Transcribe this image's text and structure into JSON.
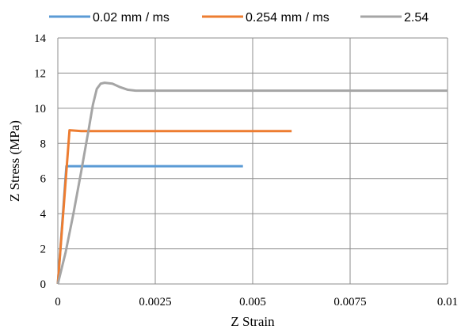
{
  "chart_data": {
    "type": "line",
    "title": "",
    "xlabel": "Z Strain",
    "ylabel": "Z Stress (MPa)",
    "xlim": [
      0,
      0.01
    ],
    "ylim": [
      0,
      14
    ],
    "x_ticks": [
      0,
      0.0025,
      0.005,
      0.0075,
      0.01
    ],
    "x_tick_labels": [
      "0",
      "0.0025",
      "0.005",
      "0.0075",
      "0.01"
    ],
    "y_ticks": [
      0,
      2,
      4,
      6,
      8,
      10,
      12,
      14
    ],
    "y_tick_labels": [
      "0",
      "2",
      "4",
      "6",
      "8",
      "10",
      "12",
      "14"
    ],
    "grid": true,
    "legend_position": "top",
    "series": [
      {
        "name": "0.02 mm / ms",
        "color": "#5b9bd5",
        "points": [
          [
            0,
            0
          ],
          [
            0.00022,
            6.7
          ],
          [
            0.00475,
            6.7
          ]
        ]
      },
      {
        "name": "0.254 mm / ms",
        "color": "#ed7d31",
        "points": [
          [
            0,
            0
          ],
          [
            0.0003,
            8.75
          ],
          [
            0.0006,
            8.7
          ],
          [
            0.006,
            8.7
          ]
        ]
      },
      {
        "name": "2.54",
        "color": "#a5a5a5",
        "points": [
          [
            0,
            0
          ],
          [
            0.0002,
            1.8
          ],
          [
            0.0004,
            4.0
          ],
          [
            0.0006,
            6.4
          ],
          [
            0.0008,
            8.9
          ],
          [
            0.0009,
            10.2
          ],
          [
            0.001,
            11.1
          ],
          [
            0.0011,
            11.4
          ],
          [
            0.0012,
            11.45
          ],
          [
            0.0014,
            11.4
          ],
          [
            0.0016,
            11.2
          ],
          [
            0.0018,
            11.05
          ],
          [
            0.002,
            11.0
          ],
          [
            0.006,
            11.0
          ],
          [
            0.01,
            11.0
          ]
        ]
      }
    ]
  }
}
